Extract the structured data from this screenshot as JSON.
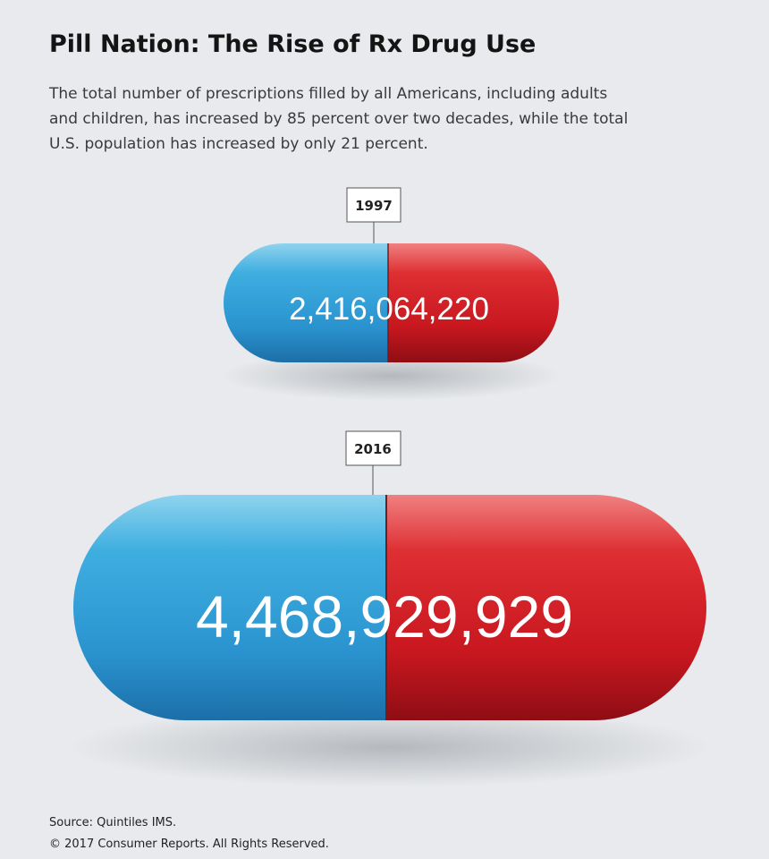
{
  "header": {
    "title": "Pill Nation: The Rise of Rx Drug Use",
    "description": [
      "The total number of prescriptions filled by all Americans, including adults",
      "and children, has increased by 85 percent over two decades, while the total",
      "U.S. population has increased by only 21 percent."
    ]
  },
  "pills": [
    {
      "year": "1997",
      "count": "2,416,064,220"
    },
    {
      "year": "2016",
      "count": "4,468,929,929"
    }
  ],
  "footer": {
    "source": "Source: Quintiles IMS.",
    "copyright": "© 2017 Consumer Reports. All Rights Reserved."
  }
}
